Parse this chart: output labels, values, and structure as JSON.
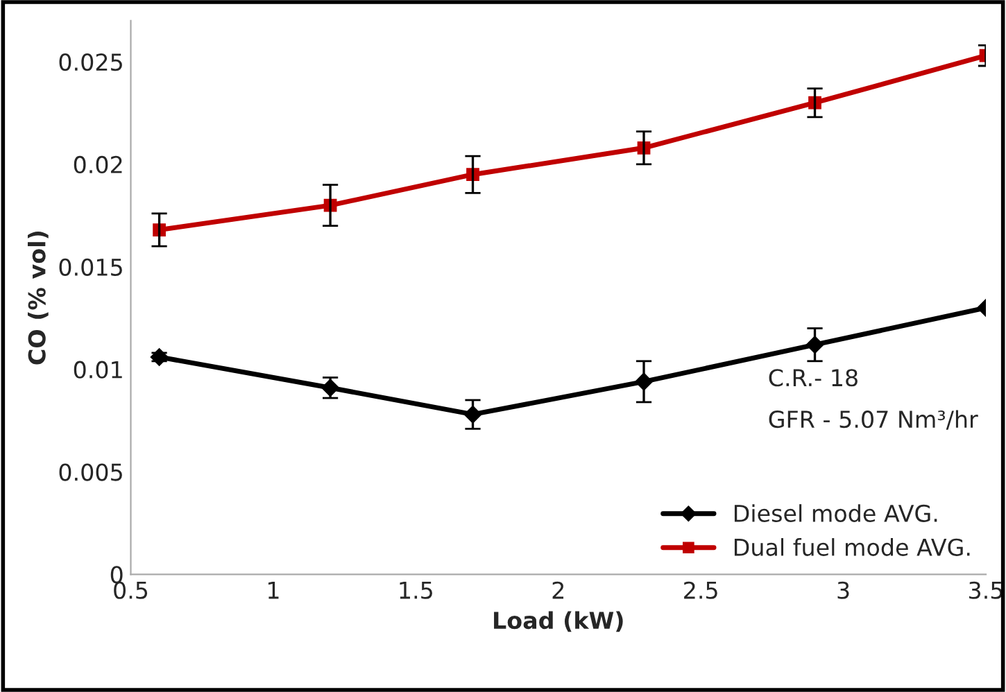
{
  "chart_data": {
    "type": "line",
    "xlabel": "Load (kW)",
    "ylabel": "CO (% vol)",
    "x": [
      0.6,
      1.2,
      1.7,
      2.3,
      2.9,
      3.5
    ],
    "series": [
      {
        "name": "Diesel mode AVG.",
        "color": "#000000",
        "marker": "diamond",
        "values": [
          0.0106,
          0.0091,
          0.0078,
          0.0094,
          0.0112,
          0.013
        ],
        "errors": [
          0.0002,
          0.0005,
          0.0007,
          0.001,
          0.0008,
          null
        ]
      },
      {
        "name": "Dual fuel mode AVG.",
        "color": "#c00000",
        "marker": "square",
        "values": [
          0.0168,
          0.018,
          0.0195,
          0.0208,
          0.023,
          0.0253
        ],
        "errors": [
          0.0008,
          0.001,
          0.0009,
          0.0008,
          0.0007,
          0.0005
        ]
      }
    ],
    "annotations": [
      "C.R.- 18",
      "GFR - 5.07 Nm³/hr"
    ],
    "xlim": [
      0.5,
      3.5
    ],
    "xticks": [
      0.5,
      1,
      1.5,
      2,
      2.5,
      3,
      3.5
    ],
    "ylim": [
      0,
      0.027
    ],
    "yticks": [
      0,
      0.005,
      0.01,
      0.015,
      0.02,
      0.025
    ],
    "grid": false,
    "legend": "bottom right",
    "line_style": "solid"
  }
}
